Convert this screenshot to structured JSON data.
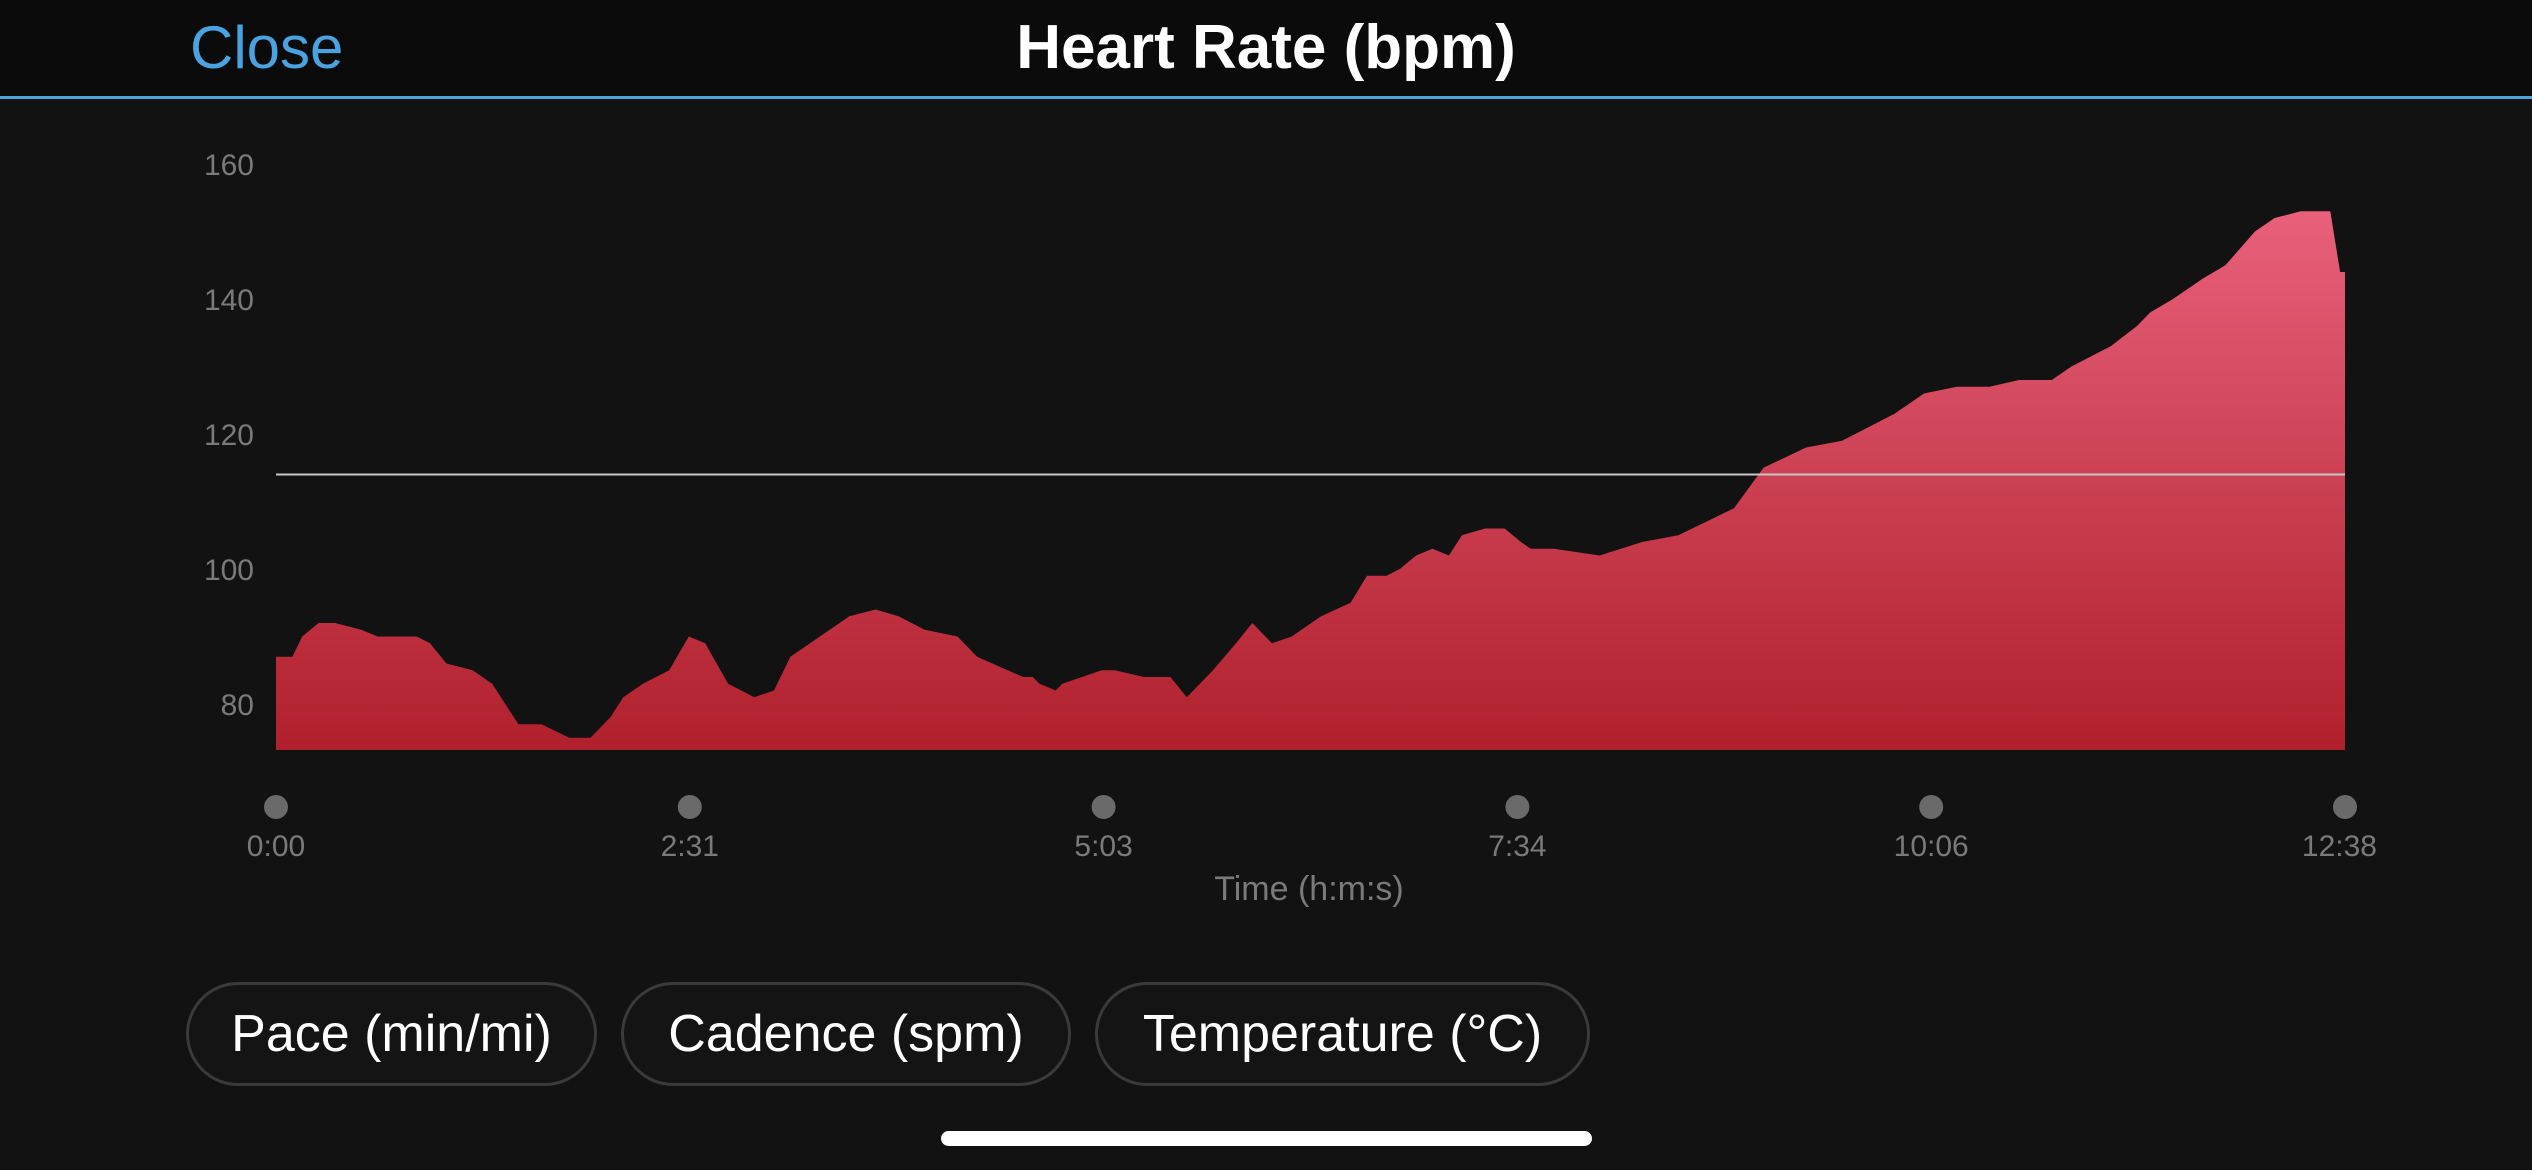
{
  "header": {
    "close_label": "Close",
    "title": "Heart Rate (bpm)"
  },
  "chart_data": {
    "type": "area",
    "title": "Heart Rate (bpm)",
    "xlabel": "Time (h:m:s)",
    "ylabel": "",
    "y_ticks": [
      80,
      100,
      120,
      140,
      160
    ],
    "x_tick_labels": [
      "0:00",
      "2:31",
      "5:03",
      "7:34",
      "10:06",
      "12:38"
    ],
    "ylim": [
      73,
      163
    ],
    "xlim": [
      0,
      12.63
    ],
    "average_line": 114,
    "grid": false,
    "colors": {
      "fill_top": "#e8607a",
      "fill_bottom": "#b0202c",
      "average_line": "#c8c8c8",
      "marker": "#6a6a6a",
      "tick_text": "#7a7a7a"
    },
    "series": [
      {
        "x": [
          0.0,
          0.1,
          0.16,
          0.26,
          0.36,
          0.52,
          0.62,
          0.86,
          0.94,
          1.04,
          1.2,
          1.32,
          1.48,
          1.62,
          1.79,
          1.92,
          2.04,
          2.12,
          2.24,
          2.4,
          2.52,
          2.62,
          2.76,
          2.92,
          3.04,
          3.14,
          3.32,
          3.5,
          3.66,
          3.8,
          3.96,
          4.16,
          4.28,
          4.56,
          4.62,
          4.66,
          4.76,
          4.8,
          4.92,
          5.04,
          5.12,
          5.3,
          5.46,
          5.56,
          5.72,
          5.86,
          5.96,
          6.08,
          6.2,
          6.38,
          6.56,
          6.66,
          6.78,
          6.86,
          6.96,
          7.06,
          7.16,
          7.24,
          7.38,
          7.5,
          7.6,
          7.66,
          7.8,
          8.08,
          8.34,
          8.56,
          8.9,
          9.08,
          9.34,
          9.56,
          9.72,
          9.88,
          10.06,
          10.26,
          10.46,
          10.64,
          10.84,
          10.96,
          11.2,
          11.36,
          11.44,
          11.58,
          11.76,
          11.9,
          12.08,
          12.2,
          12.36,
          12.54,
          12.6,
          12.63
        ],
        "values": [
          87,
          87,
          90,
          92,
          92,
          91,
          90,
          90,
          89,
          86,
          85,
          83,
          77,
          77,
          75,
          75,
          78,
          81,
          83,
          85,
          90,
          89,
          83,
          81,
          82,
          87,
          90,
          93,
          94,
          93,
          91,
          90,
          87,
          84,
          84,
          83,
          82,
          83,
          84,
          85,
          85,
          84,
          84,
          81,
          85,
          89,
          92,
          89,
          90,
          93,
          95,
          99,
          99,
          100,
          102,
          103,
          102,
          105,
          106,
          106,
          104,
          103,
          103,
          102,
          104,
          105,
          109,
          115,
          118,
          119,
          121,
          123,
          126,
          127,
          127,
          128,
          128,
          130,
          133,
          136,
          138,
          140,
          143,
          145,
          150,
          152,
          153,
          153,
          144,
          144
        ]
      }
    ]
  },
  "tabs": [
    {
      "label": "Pace (min/mi)"
    },
    {
      "label": "Cadence (spm)"
    },
    {
      "label": "Temperature (°C)"
    }
  ]
}
